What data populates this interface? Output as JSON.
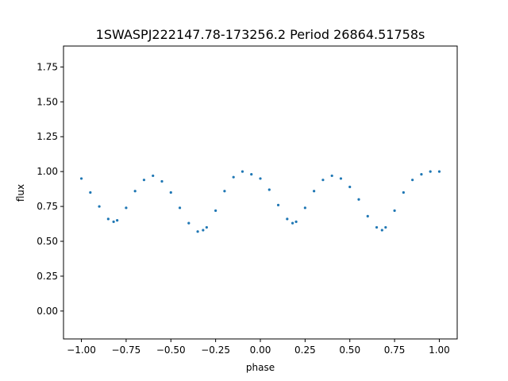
{
  "chart_data": {
    "type": "scatter",
    "title": "1SWASPJ222147.78-173256.2 Period 26864.51758s",
    "xlabel": "phase",
    "ylabel": "flux",
    "xlim": [
      -1.1,
      1.1
    ],
    "ylim": [
      -0.2,
      1.9
    ],
    "xticks": [
      -1.0,
      -0.75,
      -0.5,
      -0.25,
      0.0,
      0.25,
      0.5,
      0.75,
      1.0
    ],
    "xtick_labels": [
      "−1.00",
      "−0.75",
      "−0.50",
      "−0.25",
      "0.00",
      "0.25",
      "0.50",
      "0.75",
      "1.00"
    ],
    "yticks": [
      0.0,
      0.25,
      0.5,
      0.75,
      1.0,
      1.25,
      1.5,
      1.75
    ],
    "ytick_labels": [
      "0.00",
      "0.25",
      "0.50",
      "0.75",
      "1.00",
      "1.25",
      "1.50",
      "1.75"
    ],
    "grid": false,
    "legend": "none",
    "point_color": "#1f77b4",
    "series": [
      {
        "x": [
          -1.0,
          -0.95,
          -0.9,
          -0.85,
          -0.82,
          -0.8,
          -0.75,
          -0.7,
          -0.65,
          -0.6,
          -0.55,
          -0.5,
          -0.45,
          -0.4,
          -0.35,
          -0.32,
          -0.3,
          -0.25,
          -0.2,
          -0.15,
          -0.1,
          -0.05,
          0.0,
          0.05,
          0.1,
          0.15,
          0.18,
          0.2,
          0.25,
          0.3,
          0.35,
          0.4,
          0.45,
          0.5,
          0.55,
          0.6,
          0.65,
          0.68,
          0.7,
          0.75,
          0.8,
          0.85,
          0.9,
          0.95,
          1.0
        ],
        "y": [
          0.95,
          0.85,
          0.75,
          0.66,
          0.64,
          0.65,
          0.74,
          0.86,
          0.94,
          0.97,
          0.93,
          0.85,
          0.74,
          0.63,
          0.57,
          0.58,
          0.6,
          0.72,
          0.86,
          0.96,
          1.0,
          0.98,
          0.95,
          0.87,
          0.76,
          0.66,
          0.63,
          0.64,
          0.74,
          0.86,
          0.94,
          0.97,
          0.95,
          0.89,
          0.8,
          0.68,
          0.6,
          0.58,
          0.6,
          0.72,
          0.85,
          0.94,
          0.98,
          1.0,
          1.0
        ]
      }
    ]
  }
}
